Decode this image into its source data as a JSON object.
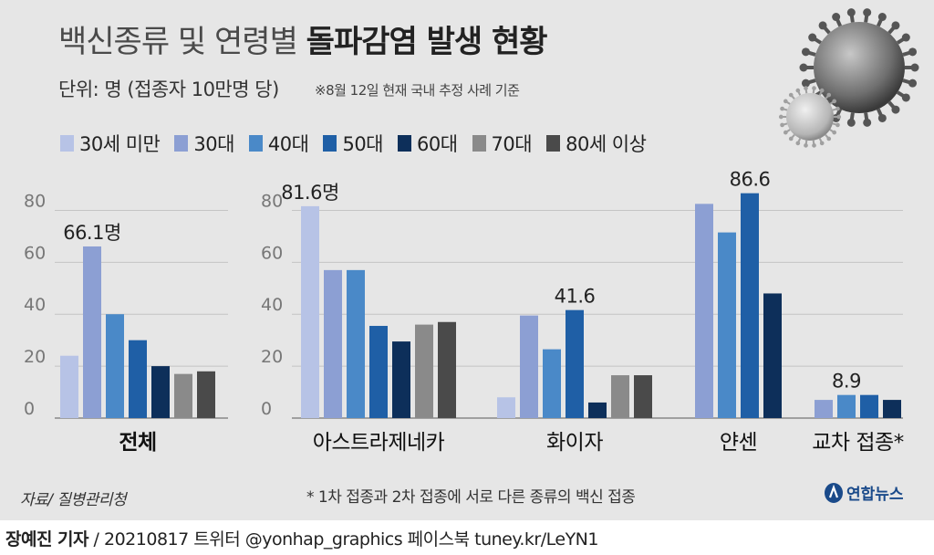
{
  "title": {
    "light": "백신종류 및 연령별 ",
    "bold": "돌파감염 발생 현황"
  },
  "unit": "단위: 명 (접종자 10만명 당)",
  "note": "※8월 12일 현재 국내 추정 사례 기준",
  "legend": [
    {
      "label": "30세 미만",
      "color": "#b7c3e6"
    },
    {
      "label": "30대",
      "color": "#8c9fd3"
    },
    {
      "label": "40대",
      "color": "#4a89c8"
    },
    {
      "label": "50대",
      "color": "#1f5fa6"
    },
    {
      "label": "60대",
      "color": "#0d2f5a"
    },
    {
      "label": "70대",
      "color": "#8a8a8a"
    },
    {
      "label": "80세 이상",
      "color": "#4a4a4a"
    }
  ],
  "chart_data": {
    "type": "bar",
    "ylim": [
      0,
      90
    ],
    "yticks": [
      0,
      20,
      40,
      60,
      80
    ],
    "grid": true,
    "groups": [
      {
        "name": "전체",
        "values": [
          24,
          66.1,
          40,
          30,
          20,
          17,
          18
        ],
        "annotation": {
          "index": 1,
          "text": "66.1명"
        }
      },
      {
        "name": "아스트라제네카",
        "values": [
          81.6,
          57,
          57,
          35.5,
          29.5,
          36,
          37
        ],
        "annotation": {
          "index": 0,
          "text": "81.6명"
        }
      },
      {
        "name": "화이자",
        "values": [
          8,
          39.5,
          26.5,
          41.6,
          6,
          16.5,
          16.5
        ],
        "annotation": {
          "index": 3,
          "text": "41.6"
        }
      },
      {
        "name": "얀센",
        "values": [
          null,
          82.5,
          71.5,
          86.6,
          48,
          null,
          null
        ],
        "annotation": {
          "index": 3,
          "text": "86.6"
        }
      },
      {
        "name": "교차 접종*",
        "values": [
          null,
          7,
          8.9,
          8.9,
          7,
          null,
          null
        ],
        "annotation": {
          "index": 2,
          "text": "8.9"
        }
      }
    ]
  },
  "source": "자료/ 질병관리청",
  "footnote": "* 1차 접종과 2차 접종에 서로 다른 종류의 백신 접종",
  "logo": "연합뉴스",
  "footer": {
    "author": "장예진 기자",
    "rest": " / 20210817 트위터 @yonhap_graphics  페이스북 tuney.kr/LeYN1"
  }
}
